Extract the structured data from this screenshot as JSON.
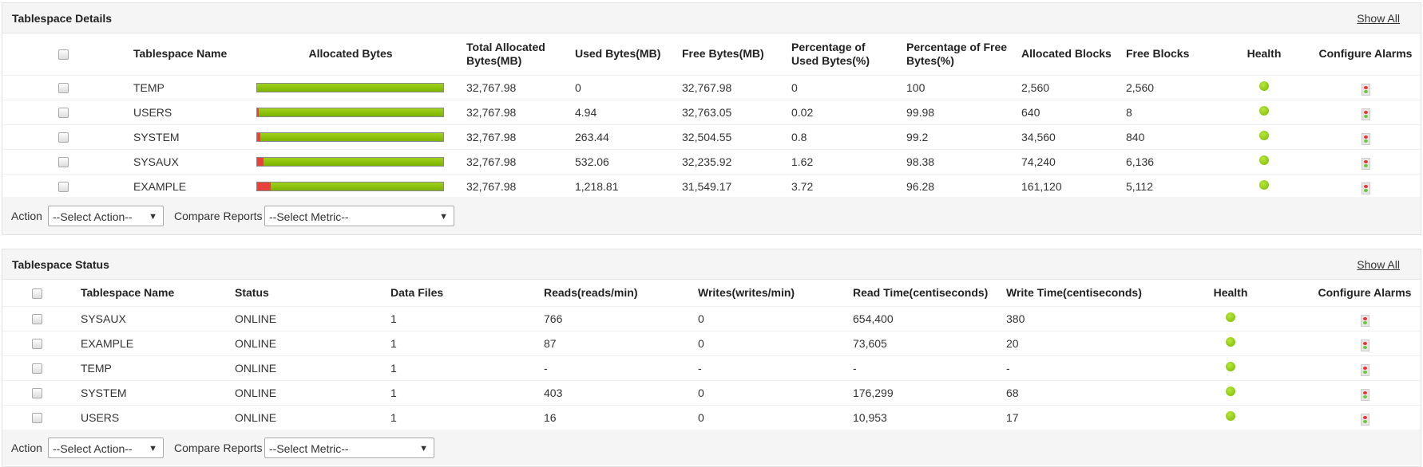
{
  "details": {
    "title": "Tablespace Details",
    "show_all": "Show All",
    "columns": [
      "Tablespace Name",
      "Allocated Bytes",
      "Total Allocated Bytes(MB)",
      "Used Bytes(MB)",
      "Free Bytes(MB)",
      "Percentage of Used Bytes(%)",
      "Percentage of Free Bytes(%)",
      "Allocated Blocks",
      "Free Blocks",
      "Health",
      "Configure Alarms"
    ],
    "rows": [
      {
        "name": "TEMP",
        "total": "32,767.98",
        "used": "0",
        "free": "32,767.98",
        "pct_used": "0",
        "pct_free": "100",
        "alloc_blocks": "2,560",
        "free_blocks": "2,560",
        "used_pct_value": 0
      },
      {
        "name": "USERS",
        "total": "32,767.98",
        "used": "4.94",
        "free": "32,763.05",
        "pct_used": "0.02",
        "pct_free": "99.98",
        "alloc_blocks": "640",
        "free_blocks": "8",
        "used_pct_value": 0.02
      },
      {
        "name": "SYSTEM",
        "total": "32,767.98",
        "used": "263.44",
        "free": "32,504.55",
        "pct_used": "0.8",
        "pct_free": "99.2",
        "alloc_blocks": "34,560",
        "free_blocks": "840",
        "used_pct_value": 0.8
      },
      {
        "name": "SYSAUX",
        "total": "32,767.98",
        "used": "532.06",
        "free": "32,235.92",
        "pct_used": "1.62",
        "pct_free": "98.38",
        "alloc_blocks": "74,240",
        "free_blocks": "6,136",
        "used_pct_value": 1.62
      },
      {
        "name": "EXAMPLE",
        "total": "32,767.98",
        "used": "1,218.81",
        "free": "31,549.17",
        "pct_used": "3.72",
        "pct_free": "96.28",
        "alloc_blocks": "161,120",
        "free_blocks": "5,112",
        "used_pct_value": 3.72
      }
    ],
    "action_label": "Action",
    "action_select": "--Select Action--",
    "compare_label": "Compare Reports",
    "metric_select": "--Select Metric--"
  },
  "status": {
    "title": "Tablespace Status",
    "show_all": "Show All",
    "columns": [
      "Tablespace Name",
      "Status",
      "Data Files",
      "Reads(reads/min)",
      "Writes(writes/min)",
      "Read Time(centiseconds)",
      "Write Time(centiseconds)",
      "Health",
      "Configure Alarms"
    ],
    "rows": [
      {
        "name": "SYSAUX",
        "status": "ONLINE",
        "files": "1",
        "reads": "766",
        "writes": "0",
        "read_time": "654,400",
        "write_time": "380"
      },
      {
        "name": "EXAMPLE",
        "status": "ONLINE",
        "files": "1",
        "reads": "87",
        "writes": "0",
        "read_time": "73,605",
        "write_time": "20"
      },
      {
        "name": "TEMP",
        "status": "ONLINE",
        "files": "1",
        "reads": "-",
        "writes": "-",
        "read_time": "-",
        "write_time": "-"
      },
      {
        "name": "SYSTEM",
        "status": "ONLINE",
        "files": "1",
        "reads": "403",
        "writes": "0",
        "read_time": "176,299",
        "write_time": "68"
      },
      {
        "name": "USERS",
        "status": "ONLINE",
        "files": "1",
        "reads": "16",
        "writes": "0",
        "read_time": "10,953",
        "write_time": "17"
      }
    ],
    "action_label": "Action",
    "action_select": "--Select Action--",
    "compare_label": "Compare Reports",
    "metric_select": "--Select Metric--"
  },
  "colors": {
    "health_ok": "#7ab800",
    "bar_free": "#8cc20e",
    "bar_used": "#e8403a"
  }
}
